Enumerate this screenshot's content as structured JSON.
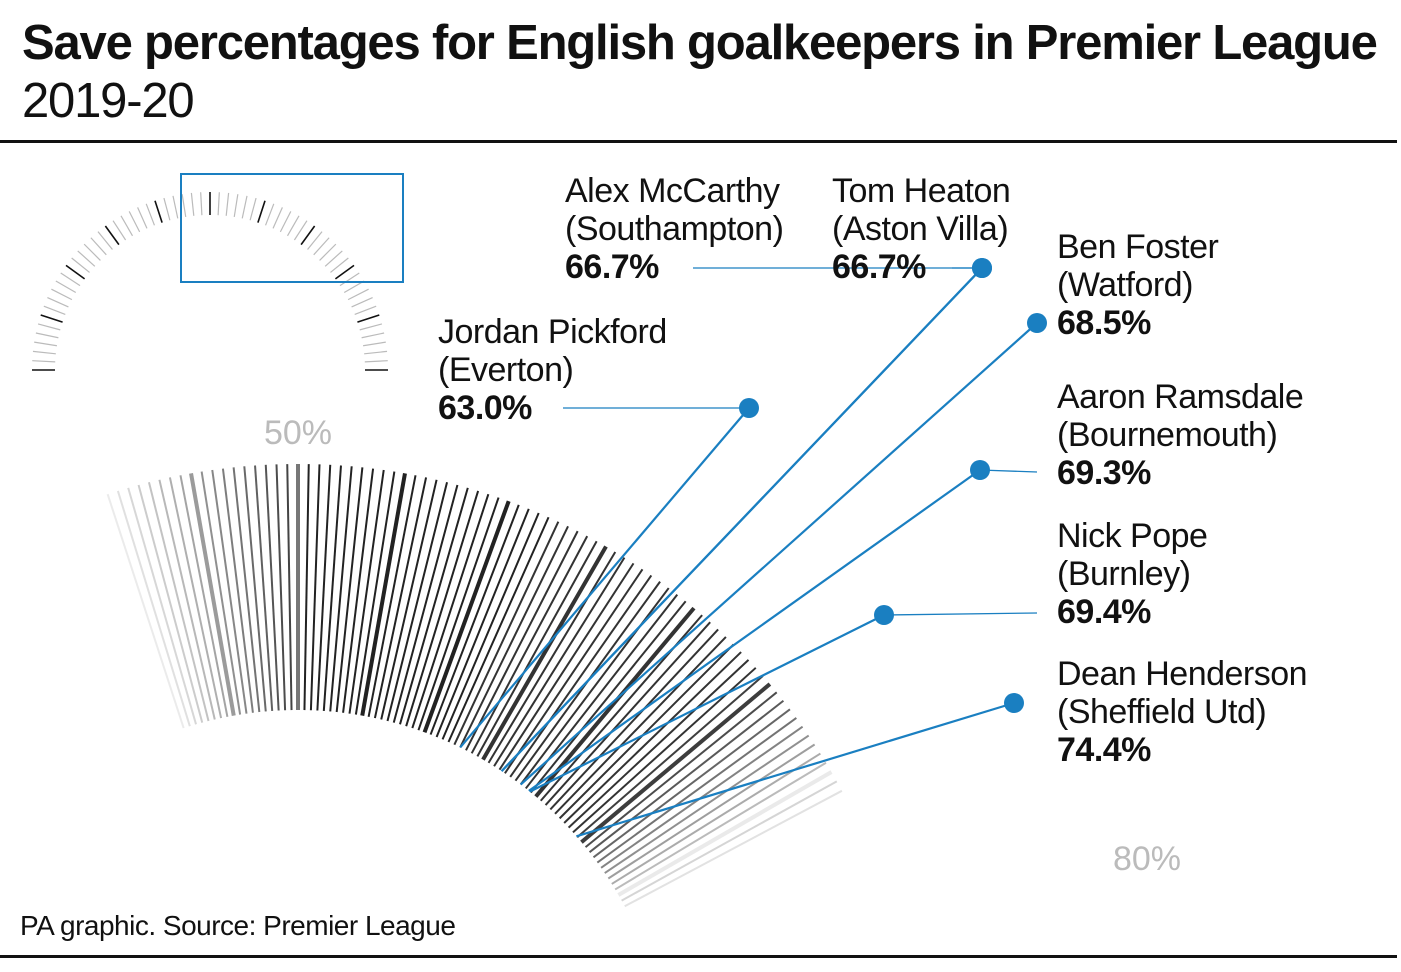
{
  "title": {
    "bold": "Save percentages for English goalkeepers in Premier League",
    "plain": "2019-20"
  },
  "source": "PA graphic. Source: Premier League",
  "colors": {
    "accent": "#1a7fc1",
    "text": "#111111",
    "muted": "#bbbbbb"
  },
  "chart_data": {
    "type": "scatter",
    "title": "Save percentages for English goalkeepers in Premier League 2019-20",
    "scale": {
      "min": 50,
      "max": 80,
      "min_label": "50%",
      "max_label": "80%"
    },
    "points": [
      {
        "name": "Jordan Pickford",
        "club": "(Everton)",
        "value": 63.0,
        "label": "63.0%"
      },
      {
        "name": "Alex McCarthy",
        "club": "(Southampton)",
        "value": 66.7,
        "label": "66.7%"
      },
      {
        "name": "Tom Heaton",
        "club": "(Aston Villa)",
        "value": 66.7,
        "label": "66.7%"
      },
      {
        "name": "Ben Foster",
        "club": "(Watford)",
        "value": 68.5,
        "label": "68.5%"
      },
      {
        "name": "Aaron Ramsdale",
        "club": "(Bournemouth)",
        "value": 69.3,
        "label": "69.3%"
      },
      {
        "name": "Nick Pope",
        "club": "(Burnley)",
        "value": 69.4,
        "label": "69.4%"
      },
      {
        "name": "Dean Henderson",
        "club": "(Sheffield Utd)",
        "value": 74.4,
        "label": "74.4%"
      }
    ]
  }
}
